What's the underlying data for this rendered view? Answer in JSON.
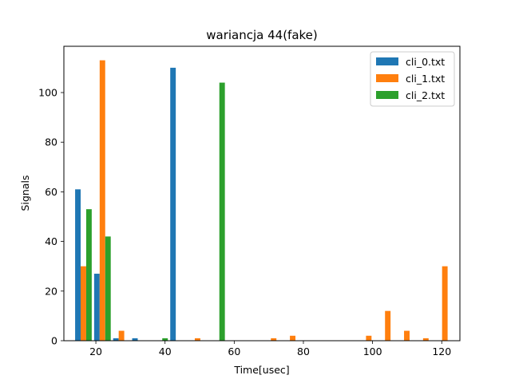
{
  "chart_data": {
    "type": "bar",
    "title": "wariancja 44(fake)",
    "xlabel": "Time[usec]",
    "ylabel": "Signals",
    "xlim": [
      10.75,
      125.25
    ],
    "ylim": [
      0,
      118.65
    ],
    "xticks": [
      20,
      40,
      60,
      80,
      100,
      120
    ],
    "yticks": [
      0,
      20,
      40,
      60,
      80,
      100
    ],
    "bar_width": 1.6,
    "grid": false,
    "legend_position": "top-right",
    "series": [
      {
        "name": "cli_0.txt",
        "color": "#1f77b4",
        "points": [
          {
            "x": 14.8,
            "y": 61
          },
          {
            "x": 20.3,
            "y": 27
          },
          {
            "x": 25.8,
            "y": 1
          },
          {
            "x": 31.3,
            "y": 1
          },
          {
            "x": 42.3,
            "y": 110
          }
        ]
      },
      {
        "name": "cli_1.txt",
        "color": "#ff7f0e",
        "points": [
          {
            "x": 16.4,
            "y": 30
          },
          {
            "x": 21.9,
            "y": 113
          },
          {
            "x": 27.4,
            "y": 4
          },
          {
            "x": 49.4,
            "y": 1
          },
          {
            "x": 71.4,
            "y": 1
          },
          {
            "x": 76.9,
            "y": 2
          },
          {
            "x": 98.9,
            "y": 2
          },
          {
            "x": 104.4,
            "y": 12
          },
          {
            "x": 109.9,
            "y": 4
          },
          {
            "x": 115.4,
            "y": 1
          },
          {
            "x": 120.9,
            "y": 30
          }
        ]
      },
      {
        "name": "cli_2.txt",
        "color": "#2ca02c",
        "points": [
          {
            "x": 18.0,
            "y": 53
          },
          {
            "x": 23.5,
            "y": 42
          },
          {
            "x": 40.0,
            "y": 1
          },
          {
            "x": 56.5,
            "y": 104
          }
        ]
      }
    ]
  }
}
